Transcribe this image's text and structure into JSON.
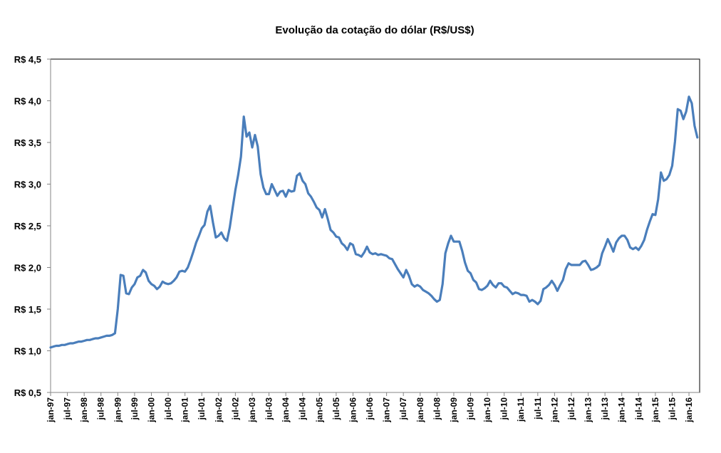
{
  "chart_data": {
    "type": "line",
    "title": "Evolução da cotação do dólar (R$/US$)",
    "xlabel": "",
    "ylabel": "",
    "ylim": [
      0.5,
      4.5
    ],
    "grid": false,
    "legend": "none",
    "line_color": "#4a7ebb",
    "y_ticks": [
      {
        "value": 0.5,
        "label": "R$ 0,5"
      },
      {
        "value": 1.0,
        "label": "R$ 1,0"
      },
      {
        "value": 1.5,
        "label": "R$ 1,5"
      },
      {
        "value": 2.0,
        "label": "R$ 2,0"
      },
      {
        "value": 2.5,
        "label": "R$ 2,5"
      },
      {
        "value": 3.0,
        "label": "R$ 3,0"
      },
      {
        "value": 3.5,
        "label": "R$ 3,5"
      },
      {
        "value": 4.0,
        "label": "R$ 4,0"
      },
      {
        "value": 4.5,
        "label": "R$ 4,5"
      }
    ],
    "x_tick_labels": [
      "jan-97",
      "jul-97",
      "jan-98",
      "jul-98",
      "jan-99",
      "jul-99",
      "jan-00",
      "jul-00",
      "jan-01",
      "jul-01",
      "jan-02",
      "jul-02",
      "jan-03",
      "jul-03",
      "jan-04",
      "jul-04",
      "jan-05",
      "jul-05",
      "jan-06",
      "jul-06",
      "jan-07",
      "jul-07",
      "jan-08",
      "jul-08",
      "jan-09",
      "jul-09",
      "jan-10",
      "jul-10",
      "jan-11",
      "jul-11",
      "jan-12",
      "jul-12",
      "jan-13",
      "jul-13",
      "jan-14",
      "jul-14",
      "jan-15",
      "jul-15",
      "jan-16"
    ],
    "start": "jan-97",
    "frequency": "monthly",
    "series": [
      {
        "name": "R$/US$",
        "values": [
          1.04,
          1.05,
          1.06,
          1.06,
          1.07,
          1.07,
          1.08,
          1.09,
          1.09,
          1.1,
          1.11,
          1.11,
          1.12,
          1.13,
          1.13,
          1.14,
          1.15,
          1.15,
          1.16,
          1.17,
          1.18,
          1.18,
          1.19,
          1.21,
          1.5,
          1.91,
          1.9,
          1.69,
          1.68,
          1.76,
          1.8,
          1.88,
          1.9,
          1.97,
          1.94,
          1.84,
          1.8,
          1.78,
          1.74,
          1.77,
          1.83,
          1.81,
          1.8,
          1.81,
          1.84,
          1.88,
          1.95,
          1.96,
          1.95,
          2.0,
          2.09,
          2.19,
          2.3,
          2.38,
          2.47,
          2.51,
          2.67,
          2.74,
          2.54,
          2.36,
          2.38,
          2.42,
          2.35,
          2.32,
          2.48,
          2.71,
          2.93,
          3.11,
          3.33,
          3.81,
          3.57,
          3.62,
          3.44,
          3.59,
          3.45,
          3.12,
          2.96,
          2.88,
          2.88,
          3.0,
          2.93,
          2.86,
          2.91,
          2.92,
          2.85,
          2.93,
          2.91,
          2.92,
          3.1,
          3.13,
          3.04,
          3.0,
          2.89,
          2.85,
          2.79,
          2.72,
          2.69,
          2.6,
          2.7,
          2.58,
          2.45,
          2.42,
          2.37,
          2.36,
          2.29,
          2.26,
          2.21,
          2.29,
          2.27,
          2.16,
          2.15,
          2.13,
          2.18,
          2.25,
          2.18,
          2.16,
          2.17,
          2.15,
          2.16,
          2.15,
          2.14,
          2.11,
          2.1,
          2.04,
          1.98,
          1.93,
          1.88,
          1.97,
          1.9,
          1.8,
          1.77,
          1.79,
          1.77,
          1.73,
          1.71,
          1.69,
          1.66,
          1.62,
          1.59,
          1.61,
          1.8,
          2.17,
          2.29,
          2.38,
          2.31,
          2.31,
          2.31,
          2.2,
          2.06,
          1.96,
          1.93,
          1.85,
          1.82,
          1.74,
          1.73,
          1.75,
          1.78,
          1.84,
          1.79,
          1.76,
          1.81,
          1.81,
          1.77,
          1.76,
          1.72,
          1.68,
          1.7,
          1.69,
          1.67,
          1.67,
          1.66,
          1.59,
          1.61,
          1.59,
          1.56,
          1.6,
          1.74,
          1.76,
          1.79,
          1.84,
          1.79,
          1.72,
          1.79,
          1.85,
          1.98,
          2.05,
          2.03,
          2.03,
          2.03,
          2.03,
          2.07,
          2.08,
          2.03,
          1.97,
          1.98,
          2.0,
          2.03,
          2.17,
          2.25,
          2.34,
          2.27,
          2.19,
          2.3,
          2.35,
          2.38,
          2.38,
          2.33,
          2.24,
          2.22,
          2.24,
          2.21,
          2.26,
          2.33,
          2.45,
          2.55,
          2.64,
          2.63,
          2.82,
          3.14,
          3.04,
          3.06,
          3.11,
          3.22,
          3.51,
          3.9,
          3.88,
          3.78,
          3.87,
          4.05,
          3.97,
          3.7,
          3.56
        ]
      }
    ]
  }
}
